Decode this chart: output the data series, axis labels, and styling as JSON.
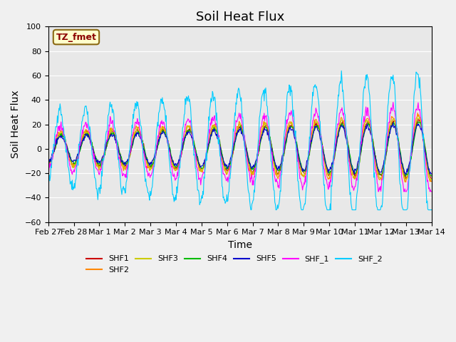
{
  "title": "Soil Heat Flux",
  "xlabel": "Time",
  "ylabel": "Soil Heat Flux",
  "ylim": [
    -60,
    100
  ],
  "legend_label": "TZ_fmet",
  "series_colors": {
    "SHF1": "#cc0000",
    "SHF2": "#ff8800",
    "SHF3": "#cccc00",
    "SHF4": "#00bb00",
    "SHF5": "#0000cc",
    "SHF_1": "#ff00ff",
    "SHF_2": "#00ccff"
  },
  "x_tick_labels": [
    "Feb 27",
    "Feb 28",
    "Mar 1",
    "Mar 2",
    "Mar 3",
    "Mar 4",
    "Mar 5",
    "Mar 6",
    "Mar 7",
    "Mar 8",
    "Mar 9",
    "Mar 10",
    "Mar 11",
    "Mar 12",
    "Mar 13",
    "Mar 14"
  ],
  "background_color": "#e8e8e8",
  "title_fontsize": 13,
  "axis_label_fontsize": 10,
  "tick_fontsize": 8
}
